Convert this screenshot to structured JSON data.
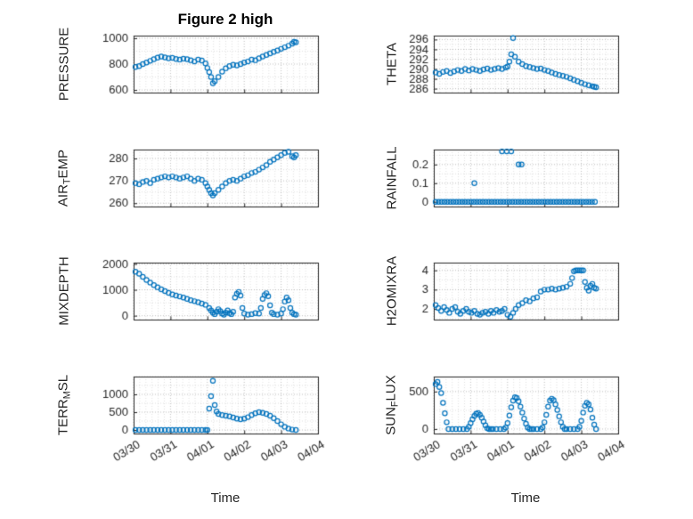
{
  "figure": {
    "title": "Figure 2 high",
    "xlabel": "Time",
    "marker_color": "#0072BD",
    "axis_color": "#262626",
    "x_tick_labels": [
      "03/30",
      "03/31",
      "04/01",
      "04/02",
      "04/03",
      "04/04"
    ],
    "xlim": [
      0,
      5
    ]
  },
  "chart_data": [
    {
      "id": "pressure",
      "type": "scatter",
      "row": 0,
      "col": 0,
      "ylabel": "PRESSURE",
      "ylabel_parts": [
        {
          "t": "PRESSURE"
        }
      ],
      "ylim": [
        580,
        1020
      ],
      "yticks": [
        600,
        800,
        1000
      ],
      "x": [
        0.05,
        0.15,
        0.25,
        0.35,
        0.45,
        0.55,
        0.65,
        0.75,
        0.85,
        0.95,
        1.05,
        1.15,
        1.25,
        1.35,
        1.45,
        1.55,
        1.65,
        1.75,
        1.85,
        1.95,
        2.0,
        2.05,
        2.1,
        2.15,
        2.2,
        2.3,
        2.4,
        2.5,
        2.6,
        2.7,
        2.8,
        2.9,
        3.0,
        3.1,
        3.2,
        3.3,
        3.4,
        3.5,
        3.6,
        3.7,
        3.8,
        3.9,
        4.0,
        4.1,
        4.2,
        4.3,
        4.35,
        4.4
      ],
      "y": [
        778,
        785,
        800,
        812,
        825,
        838,
        850,
        858,
        852,
        845,
        848,
        840,
        835,
        842,
        838,
        830,
        820,
        835,
        828,
        805,
        770,
        738,
        700,
        652,
        668,
        700,
        742,
        768,
        785,
        795,
        790,
        800,
        812,
        820,
        835,
        830,
        845,
        858,
        870,
        882,
        895,
        905,
        918,
        930,
        942,
        958,
        972,
        968
      ]
    },
    {
      "id": "theta",
      "type": "scatter",
      "row": 0,
      "col": 1,
      "ylabel": "THETA",
      "ylabel_parts": [
        {
          "t": "THETA"
        }
      ],
      "ylim": [
        285.2,
        296.8
      ],
      "yticks": [
        286,
        288,
        290,
        292,
        294,
        296
      ],
      "x": [
        0.05,
        0.15,
        0.25,
        0.35,
        0.45,
        0.55,
        0.65,
        0.75,
        0.85,
        0.95,
        1.05,
        1.15,
        1.25,
        1.35,
        1.45,
        1.55,
        1.65,
        1.75,
        1.85,
        1.95,
        2.0,
        2.05,
        2.1,
        2.15,
        2.2,
        2.3,
        2.4,
        2.5,
        2.6,
        2.7,
        2.8,
        2.9,
        3.0,
        3.1,
        3.2,
        3.3,
        3.4,
        3.5,
        3.6,
        3.7,
        3.8,
        3.9,
        4.0,
        4.1,
        4.2,
        4.3,
        4.35,
        4.4
      ],
      "y": [
        289.3,
        289.0,
        289.4,
        289.6,
        289.2,
        289.5,
        289.8,
        289.6,
        290.0,
        289.7,
        290.0,
        289.8,
        289.6,
        289.9,
        290.1,
        289.8,
        290.0,
        290.2,
        290.0,
        290.3,
        290.5,
        291.5,
        293.0,
        296.3,
        292.5,
        291.5,
        291.0,
        290.6,
        290.4,
        290.2,
        290.0,
        290.1,
        289.8,
        289.6,
        289.3,
        289.0,
        288.8,
        288.6,
        288.4,
        288.1,
        287.8,
        287.5,
        287.2,
        286.9,
        286.7,
        286.5,
        286.4,
        286.3
      ]
    },
    {
      "id": "air-temp",
      "type": "scatter",
      "row": 1,
      "col": 0,
      "ylabel": "AIR_TEMP",
      "ylabel_parts": [
        {
          "t": "AIR"
        },
        {
          "t": "T",
          "sub": true
        },
        {
          "t": "EMP"
        }
      ],
      "ylim": [
        258.5,
        284
      ],
      "yticks": [
        260,
        270,
        280
      ],
      "x": [
        0.05,
        0.15,
        0.25,
        0.35,
        0.45,
        0.55,
        0.65,
        0.75,
        0.85,
        0.95,
        1.05,
        1.15,
        1.25,
        1.35,
        1.45,
        1.55,
        1.65,
        1.75,
        1.85,
        1.95,
        2.0,
        2.05,
        2.1,
        2.15,
        2.2,
        2.3,
        2.4,
        2.5,
        2.6,
        2.7,
        2.8,
        2.9,
        3.0,
        3.1,
        3.2,
        3.3,
        3.4,
        3.5,
        3.6,
        3.7,
        3.8,
        3.9,
        4.0,
        4.1,
        4.2,
        4.3,
        4.35,
        4.4
      ],
      "y": [
        269,
        268.5,
        269.5,
        270,
        269,
        270.5,
        271,
        271.5,
        272,
        271.5,
        272,
        271.5,
        271,
        271.5,
        272,
        271,
        270,
        271,
        270.5,
        269,
        267.5,
        266,
        264.5,
        263.5,
        264.5,
        266,
        267.5,
        269,
        270,
        270.5,
        270,
        271,
        272,
        272.5,
        273.5,
        274,
        275,
        276,
        277,
        278.5,
        279.5,
        280.5,
        281.5,
        282.5,
        283,
        281,
        280.5,
        281.5
      ]
    },
    {
      "id": "rainfall",
      "type": "scatter",
      "row": 1,
      "col": 1,
      "ylabel": "RAINFALL",
      "ylabel_parts": [
        {
          "t": "RAINFALL"
        }
      ],
      "ylim": [
        -0.025,
        0.28
      ],
      "yticks": [
        0,
        0.1,
        0.2
      ],
      "x": [
        0.05,
        0.13,
        0.21,
        0.29,
        0.37,
        0.45,
        0.53,
        0.61,
        0.69,
        0.77,
        0.85,
        0.93,
        1.01,
        1.09,
        1.17,
        1.25,
        1.33,
        1.41,
        1.49,
        1.57,
        1.65,
        1.73,
        1.81,
        1.89,
        1.97,
        2.05,
        2.13,
        2.21,
        2.29,
        2.37,
        2.45,
        2.53,
        2.61,
        2.69,
        2.77,
        2.85,
        2.93,
        3.01,
        3.09,
        3.17,
        3.25,
        3.33,
        3.41,
        3.49,
        3.57,
        3.65,
        3.73,
        3.81,
        3.89,
        3.97,
        4.05,
        4.13,
        4.21,
        4.29,
        4.37,
        1.1,
        1.85,
        1.98,
        2.1,
        2.3,
        2.38
      ],
      "y": [
        0,
        0,
        0,
        0,
        0,
        0,
        0,
        0,
        0,
        0,
        0,
        0,
        0,
        0,
        0,
        0,
        0,
        0,
        0,
        0,
        0,
        0,
        0,
        0,
        0,
        0,
        0,
        0,
        0,
        0,
        0,
        0,
        0,
        0,
        0,
        0,
        0,
        0,
        0,
        0,
        0,
        0,
        0,
        0,
        0,
        0,
        0,
        0,
        0,
        0,
        0,
        0,
        0,
        0,
        0,
        0.1,
        0.27,
        0.27,
        0.27,
        0.2,
        0.2
      ]
    },
    {
      "id": "mixdepth",
      "type": "scatter",
      "row": 2,
      "col": 0,
      "ylabel": "MIXDEPTH",
      "ylabel_parts": [
        {
          "t": "MIXDEPTH"
        }
      ],
      "ylim": [
        -150,
        2050
      ],
      "yticks": [
        0,
        1000,
        2000
      ],
      "x": [
        0.05,
        0.15,
        0.25,
        0.35,
        0.45,
        0.55,
        0.65,
        0.75,
        0.85,
        0.95,
        1.05,
        1.15,
        1.25,
        1.35,
        1.45,
        1.55,
        1.65,
        1.75,
        1.85,
        1.95,
        2.05,
        2.1,
        2.15,
        2.2,
        2.25,
        2.3,
        2.35,
        2.4,
        2.45,
        2.5,
        2.55,
        2.6,
        2.65,
        2.7,
        2.75,
        2.8,
        2.85,
        2.9,
        2.95,
        3.0,
        3.1,
        3.2,
        3.3,
        3.4,
        3.45,
        3.5,
        3.55,
        3.6,
        3.65,
        3.7,
        3.75,
        3.8,
        3.9,
        4.0,
        4.05,
        4.1,
        4.15,
        4.2,
        4.25,
        4.3,
        4.35,
        4.4
      ],
      "y": [
        1700,
        1620,
        1500,
        1380,
        1280,
        1180,
        1100,
        1020,
        950,
        880,
        820,
        780,
        740,
        700,
        650,
        600,
        560,
        520,
        470,
        420,
        300,
        200,
        120,
        60,
        150,
        250,
        180,
        80,
        40,
        120,
        200,
        100,
        60,
        150,
        700,
        850,
        920,
        780,
        300,
        80,
        40,
        60,
        100,
        80,
        300,
        650,
        800,
        870,
        750,
        400,
        120,
        60,
        40,
        80,
        250,
        550,
        700,
        600,
        300,
        120,
        60,
        40
      ]
    },
    {
      "id": "h2omixra",
      "type": "scatter",
      "row": 2,
      "col": 1,
      "ylabel": "H2OMIXRA",
      "ylabel_parts": [
        {
          "t": "H2OMIXRA"
        }
      ],
      "ylim": [
        1.45,
        4.4
      ],
      "yticks": [
        2,
        3,
        4
      ],
      "x": [
        0.05,
        0.12,
        0.2,
        0.28,
        0.35,
        0.42,
        0.5,
        0.58,
        0.65,
        0.72,
        0.8,
        0.88,
        0.95,
        1.02,
        1.1,
        1.18,
        1.25,
        1.32,
        1.4,
        1.48,
        1.55,
        1.62,
        1.7,
        1.78,
        1.85,
        1.92,
        2.0,
        2.08,
        2.15,
        2.22,
        2.3,
        2.4,
        2.5,
        2.6,
        2.7,
        2.8,
        2.9,
        3.0,
        3.1,
        3.2,
        3.3,
        3.4,
        3.5,
        3.6,
        3.7,
        3.75,
        3.8,
        3.85,
        3.9,
        3.95,
        4.0,
        4.05,
        4.1,
        4.15,
        4.2,
        4.25,
        4.3,
        4.35,
        4.4
      ],
      "y": [
        2.2,
        2.05,
        1.9,
        2.1,
        1.95,
        1.8,
        2.0,
        2.1,
        1.85,
        1.75,
        1.9,
        2.0,
        1.85,
        1.8,
        1.9,
        1.75,
        1.7,
        1.8,
        1.85,
        1.75,
        1.9,
        1.8,
        1.95,
        1.85,
        1.9,
        2.0,
        1.7,
        1.6,
        1.8,
        2.0,
        2.2,
        2.3,
        2.45,
        2.4,
        2.55,
        2.6,
        2.9,
        3.0,
        3.0,
        3.05,
        3.0,
        3.05,
        3.1,
        3.15,
        3.3,
        3.6,
        3.95,
        4.0,
        4.0,
        4.0,
        4.0,
        4.0,
        3.4,
        3.1,
        2.95,
        3.2,
        3.3,
        3.1,
        3.05
      ]
    },
    {
      "id": "terr-msl",
      "type": "scatter",
      "row": 3,
      "col": 0,
      "ylabel": "TERR_MSL",
      "ylabel_parts": [
        {
          "t": "TERR"
        },
        {
          "t": "M",
          "sub": true
        },
        {
          "t": "SL"
        }
      ],
      "ylim": [
        -100,
        1500
      ],
      "yticks": [
        0,
        500,
        1000
      ],
      "x": [
        0.05,
        0.15,
        0.25,
        0.35,
        0.45,
        0.55,
        0.65,
        0.75,
        0.85,
        0.95,
        1.05,
        1.15,
        1.25,
        1.35,
        1.45,
        1.55,
        1.65,
        1.75,
        1.85,
        1.95,
        2.0,
        2.05,
        2.1,
        2.15,
        2.2,
        2.25,
        2.3,
        2.4,
        2.5,
        2.6,
        2.7,
        2.8,
        2.9,
        3.0,
        3.1,
        3.2,
        3.3,
        3.4,
        3.5,
        3.6,
        3.7,
        3.8,
        3.9,
        4.0,
        4.1,
        4.2,
        4.3,
        4.4
      ],
      "y": [
        0,
        0,
        0,
        0,
        0,
        0,
        0,
        0,
        0,
        0,
        0,
        0,
        0,
        0,
        0,
        0,
        0,
        0,
        0,
        0,
        0,
        600,
        950,
        1380,
        700,
        520,
        450,
        420,
        400,
        380,
        350,
        320,
        300,
        320,
        360,
        420,
        470,
        500,
        480,
        450,
        400,
        330,
        250,
        160,
        90,
        40,
        10,
        0
      ]
    },
    {
      "id": "sun-flux",
      "type": "scatter",
      "row": 3,
      "col": 1,
      "ylabel": "SUN_FLUX",
      "ylabel_parts": [
        {
          "t": "SUN"
        },
        {
          "t": "F",
          "sub": true
        },
        {
          "t": "LUX"
        }
      ],
      "ylim": [
        -60,
        700
      ],
      "yticks": [
        0,
        500
      ],
      "x": [
        0.05,
        0.1,
        0.15,
        0.2,
        0.25,
        0.3,
        0.35,
        0.4,
        0.5,
        0.6,
        0.7,
        0.8,
        0.9,
        0.95,
        1.0,
        1.05,
        1.1,
        1.15,
        1.2,
        1.25,
        1.3,
        1.35,
        1.4,
        1.45,
        1.5,
        1.55,
        1.6,
        1.7,
        1.8,
        1.9,
        1.95,
        2.0,
        2.05,
        2.1,
        2.15,
        2.2,
        2.25,
        2.3,
        2.35,
        2.4,
        2.45,
        2.5,
        2.55,
        2.6,
        2.65,
        2.7,
        2.8,
        2.9,
        2.95,
        3.0,
        3.05,
        3.1,
        3.15,
        3.2,
        3.25,
        3.3,
        3.35,
        3.4,
        3.45,
        3.5,
        3.55,
        3.6,
        3.7,
        3.8,
        3.9,
        3.95,
        4.0,
        4.05,
        4.1,
        4.15,
        4.2,
        4.25,
        4.3,
        4.35,
        4.4
      ],
      "y": [
        600,
        630,
        560,
        480,
        350,
        210,
        90,
        0,
        0,
        0,
        0,
        0,
        0,
        30,
        80,
        130,
        175,
        205,
        215,
        190,
        150,
        100,
        50,
        10,
        0,
        0,
        0,
        0,
        0,
        0,
        20,
        80,
        180,
        290,
        380,
        425,
        415,
        370,
        300,
        220,
        140,
        70,
        20,
        0,
        0,
        0,
        0,
        0,
        20,
        90,
        190,
        300,
        380,
        405,
        385,
        330,
        255,
        170,
        90,
        30,
        0,
        0,
        0,
        0,
        0,
        30,
        110,
        220,
        310,
        350,
        330,
        260,
        150,
        60,
        0
      ]
    }
  ]
}
